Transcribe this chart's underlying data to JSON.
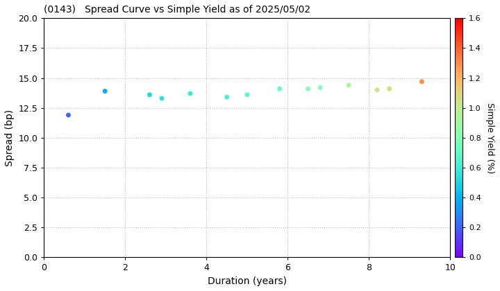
{
  "title": "(0143)   Spread Curve vs Simple Yield as of 2025/05/02",
  "xlabel": "Duration (years)",
  "ylabel": "Spread (bp)",
  "colorbar_label": "Simple Yield (%)",
  "xlim": [
    0,
    10
  ],
  "ylim": [
    0.0,
    20.0
  ],
  "yticks": [
    0.0,
    2.5,
    5.0,
    7.5,
    10.0,
    12.5,
    15.0,
    17.5,
    20.0
  ],
  "xticks": [
    0,
    2,
    4,
    6,
    8,
    10
  ],
  "colorbar_min": 0.0,
  "colorbar_max": 1.6,
  "colorbar_ticks": [
    0.0,
    0.2,
    0.4,
    0.6,
    0.8,
    1.0,
    1.2,
    1.4,
    1.6
  ],
  "points": [
    {
      "duration": 0.6,
      "spread": 11.9,
      "simple_yield": 0.22
    },
    {
      "duration": 1.5,
      "spread": 13.9,
      "simple_yield": 0.38
    },
    {
      "duration": 2.6,
      "spread": 13.6,
      "simple_yield": 0.5
    },
    {
      "duration": 2.9,
      "spread": 13.3,
      "simple_yield": 0.54
    },
    {
      "duration": 3.6,
      "spread": 13.7,
      "simple_yield": 0.58
    },
    {
      "duration": 4.5,
      "spread": 13.4,
      "simple_yield": 0.62
    },
    {
      "duration": 5.0,
      "spread": 13.6,
      "simple_yield": 0.68
    },
    {
      "duration": 5.8,
      "spread": 14.1,
      "simple_yield": 0.72
    },
    {
      "duration": 6.5,
      "spread": 14.1,
      "simple_yield": 0.8
    },
    {
      "duration": 6.8,
      "spread": 14.2,
      "simple_yield": 0.82
    },
    {
      "duration": 7.5,
      "spread": 14.4,
      "simple_yield": 0.95
    },
    {
      "duration": 8.2,
      "spread": 14.0,
      "simple_yield": 1.05
    },
    {
      "duration": 8.5,
      "spread": 14.1,
      "simple_yield": 1.08
    },
    {
      "duration": 9.3,
      "spread": 14.7,
      "simple_yield": 1.3
    }
  ],
  "marker_size": 25,
  "background_color": "#ffffff",
  "grid_color": "#bbbbbb",
  "grid_style": "dotted",
  "cmap": "rainbow"
}
